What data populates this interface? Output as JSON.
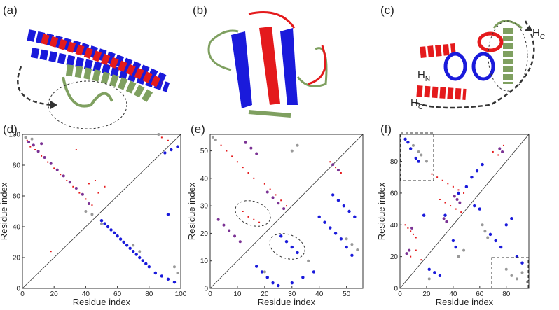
{
  "structures": [
    {
      "panel_label": "(a)"
    },
    {
      "panel_label": "(b)"
    },
    {
      "panel_label": "(c)",
      "annotations": [
        {
          "text": "H",
          "sub": "N"
        },
        {
          "text": "H",
          "sub": "C"
        },
        {
          "text": "H",
          "sub": "C"
        }
      ]
    }
  ],
  "chart_data": [
    {
      "type": "scatter",
      "panel_label": "(d)",
      "xlabel": "Residue index",
      "ylabel": "Residue index",
      "xlim": [
        0,
        100
      ],
      "ylim": [
        0,
        100
      ],
      "xticks": [
        0,
        20,
        40,
        60,
        80,
        100
      ],
      "yticks": [
        0,
        20,
        40,
        60,
        80,
        100
      ],
      "series": [
        {
          "color": "#e41a1c",
          "x": [
            3,
            5,
            8,
            12,
            16,
            20,
            24,
            28,
            32,
            36,
            40,
            44,
            48,
            52,
            42,
            46,
            34,
            88,
            92,
            18
          ],
          "values": [
            96,
            92,
            90,
            86,
            82,
            78,
            74,
            70,
            66,
            62,
            58,
            54,
            62,
            66,
            68,
            70,
            90,
            98,
            96,
            24
          ]
        },
        {
          "color": "#7b3294",
          "x": [
            4,
            7,
            10,
            14,
            18,
            22,
            26,
            30,
            34,
            38,
            42,
            12
          ],
          "values": [
            95,
            93,
            89,
            85,
            81,
            77,
            73,
            69,
            65,
            61,
            55,
            94
          ]
        },
        {
          "color": "#999999",
          "x": [
            2,
            6,
            40,
            44,
            50,
            54,
            58,
            86,
            96,
            98,
            70,
            74
          ],
          "values": [
            98,
            97,
            50,
            48,
            42,
            40,
            36,
            100,
            14,
            10,
            28,
            24
          ]
        },
        {
          "color": "#1a1adb",
          "x": [
            50,
            52,
            54,
            56,
            58,
            60,
            62,
            64,
            66,
            68,
            70,
            72,
            74,
            76,
            78,
            80,
            84,
            88,
            92,
            96,
            90,
            94,
            98,
            92
          ],
          "values": [
            44,
            42,
            40,
            38,
            36,
            34,
            32,
            30,
            28,
            26,
            24,
            22,
            20,
            18,
            16,
            14,
            10,
            8,
            6,
            4,
            88,
            90,
            92,
            48
          ]
        }
      ]
    },
    {
      "type": "scatter",
      "panel_label": "(e)",
      "xlabel": "Residue index",
      "ylabel": "Residue index",
      "xlim": [
        0,
        56
      ],
      "ylim": [
        0,
        56
      ],
      "xticks": [
        0,
        10,
        20,
        30,
        40,
        50
      ],
      "yticks": [
        0,
        10,
        20,
        30,
        40,
        50
      ],
      "series": [
        {
          "color": "#e41a1c",
          "x": [
            2,
            4,
            6,
            8,
            10,
            12,
            14,
            16,
            20,
            22,
            24,
            26,
            28,
            12,
            14,
            16,
            18,
            44,
            46,
            48
          ],
          "values": [
            54,
            52,
            50,
            48,
            46,
            44,
            42,
            40,
            38,
            36,
            34,
            32,
            30,
            28,
            26,
            25,
            24,
            46,
            44,
            42
          ]
        },
        {
          "color": "#7b3294",
          "x": [
            3,
            5,
            7,
            9,
            11,
            13,
            15,
            17,
            21,
            23,
            25,
            27,
            45,
            47
          ],
          "values": [
            25,
            23,
            21,
            19,
            17,
            53,
            51,
            49,
            35,
            33,
            31,
            29,
            45,
            43
          ]
        },
        {
          "color": "#999999",
          "x": [
            1,
            2,
            30,
            32,
            50,
            52,
            54,
            36,
            20
          ],
          "values": [
            55,
            54,
            50,
            52,
            18,
            16,
            14,
            10,
            6
          ]
        },
        {
          "color": "#1a1adb",
          "x": [
            26,
            28,
            30,
            32,
            17,
            19,
            21,
            23,
            25,
            45,
            47,
            49,
            51,
            53,
            40,
            42,
            44,
            46,
            48,
            50,
            52,
            30,
            34,
            38
          ],
          "values": [
            19,
            17,
            15,
            13,
            8,
            6,
            4,
            2,
            1,
            34,
            32,
            30,
            28,
            26,
            26,
            24,
            22,
            20,
            18,
            15,
            12,
            2,
            4,
            6
          ]
        }
      ]
    },
    {
      "type": "scatter",
      "panel_label": "(f)",
      "xlabel": "Residue index",
      "ylabel": "Residue index",
      "xlim": [
        0,
        97
      ],
      "ylim": [
        0,
        97
      ],
      "xticks": [
        0,
        20,
        40,
        60,
        80
      ],
      "yticks": [
        0,
        20,
        40,
        60,
        80
      ],
      "series": [
        {
          "color": "#e41a1c",
          "x": [
            4,
            6,
            8,
            10,
            12,
            24,
            28,
            32,
            36,
            40,
            44,
            48,
            30,
            34,
            38,
            42,
            46,
            8,
            12,
            16,
            70,
            74,
            78
          ],
          "values": [
            40,
            38,
            36,
            34,
            32,
            72,
            70,
            68,
            66,
            64,
            62,
            60,
            56,
            54,
            52,
            50,
            48,
            20,
            24,
            18,
            86,
            84,
            90
          ]
        },
        {
          "color": "#7b3294",
          "x": [
            5,
            7,
            9,
            41,
            43,
            45,
            33,
            35,
            75,
            77
          ],
          "values": [
            22,
            24,
            38,
            58,
            56,
            54,
            44,
            42,
            88,
            86
          ]
        },
        {
          "color": "#999999",
          "x": [
            10,
            14,
            16,
            20,
            62,
            64,
            66,
            80,
            84,
            88,
            92,
            96,
            44,
            48,
            22,
            26
          ],
          "values": [
            90,
            86,
            84,
            80,
            40,
            36,
            32,
            12,
            8,
            6,
            10,
            4,
            20,
            24,
            6,
            10
          ]
        },
        {
          "color": "#1a1adb",
          "x": [
            4,
            6,
            8,
            12,
            14,
            18,
            22,
            26,
            30,
            40,
            42,
            44,
            50,
            54,
            58,
            62,
            68,
            72,
            76,
            80,
            84,
            88,
            92,
            56,
            60,
            34
          ],
          "values": [
            94,
            92,
            88,
            82,
            80,
            46,
            12,
            10,
            8,
            30,
            26,
            60,
            64,
            70,
            74,
            78,
            34,
            30,
            26,
            40,
            44,
            20,
            16,
            52,
            50,
            46
          ]
        }
      ]
    }
  ]
}
